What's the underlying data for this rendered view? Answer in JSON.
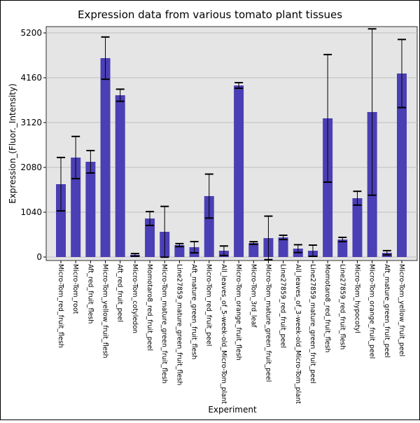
{
  "chart_data": {
    "type": "bar",
    "title": "Expression data from various tomato plant tissues",
    "xlabel": "Experiment",
    "ylabel": "Expression_(Fluor._Intensity)",
    "ylim": [
      -100,
      5300
    ],
    "yticks": [
      0,
      1040,
      2080,
      3120,
      4160,
      5200
    ],
    "grid": true,
    "bar_color": "#4b3fb5",
    "background_color": "#e5e5e5",
    "categories": [
      "Micro-Tom_red_fruit_flesh",
      "Micro-Tom_root",
      "Aft_red_fruit_flesh",
      "Micro-Tom_yellow_fruit_flesh",
      "Aft_red_fruit_peel",
      "Micro-Tom_cotyledon",
      "Momotaro8_red_fruit_peel",
      "Micro-Tom_mature_green_fruit_flesh",
      "Line27859_mature_green_fruit_flesh",
      "Aft_mature_green_fruit_flesh",
      "Micro-Tom_red_fruit_peel",
      "All_leaves_of_5-week-old_Micro-Tom_plant",
      "Micro-Tom_orange_fruit_flesh",
      "Micro-Tom_3rd_leaf",
      "Micro-Tom_mature_green_fruit_peel",
      "Line27859_red_fruit_peel",
      "All_leaves_of_3-week-old_Micro-Tom_plant",
      "Line27859_mature_green_fruit_peel",
      "Momotaro8_red_fruit_flesh",
      "Line27859_red_fruit_flesh",
      "Micro-Tom_hypocotyl",
      "Micro-Tom_orange_fruit_peel",
      "Aft_mature_green_fruit_peel",
      "Micro-Tom_yellow_fruit_peel"
    ],
    "values": [
      1690,
      2308,
      2210,
      4615,
      3754,
      50,
      894,
      585,
      276,
      228,
      1414,
      146,
      3981,
      325,
      439,
      455,
      195,
      146,
      3218,
      406,
      1365,
      3364,
      98,
      4258
    ],
    "errors": [
      620,
      490,
      260,
      490,
      140,
      30,
      160,
      590,
      35,
      130,
      510,
      110,
      65,
      30,
      510,
      50,
      90,
      130,
      1480,
      50,
      160,
      1930,
      50,
      790
    ]
  }
}
